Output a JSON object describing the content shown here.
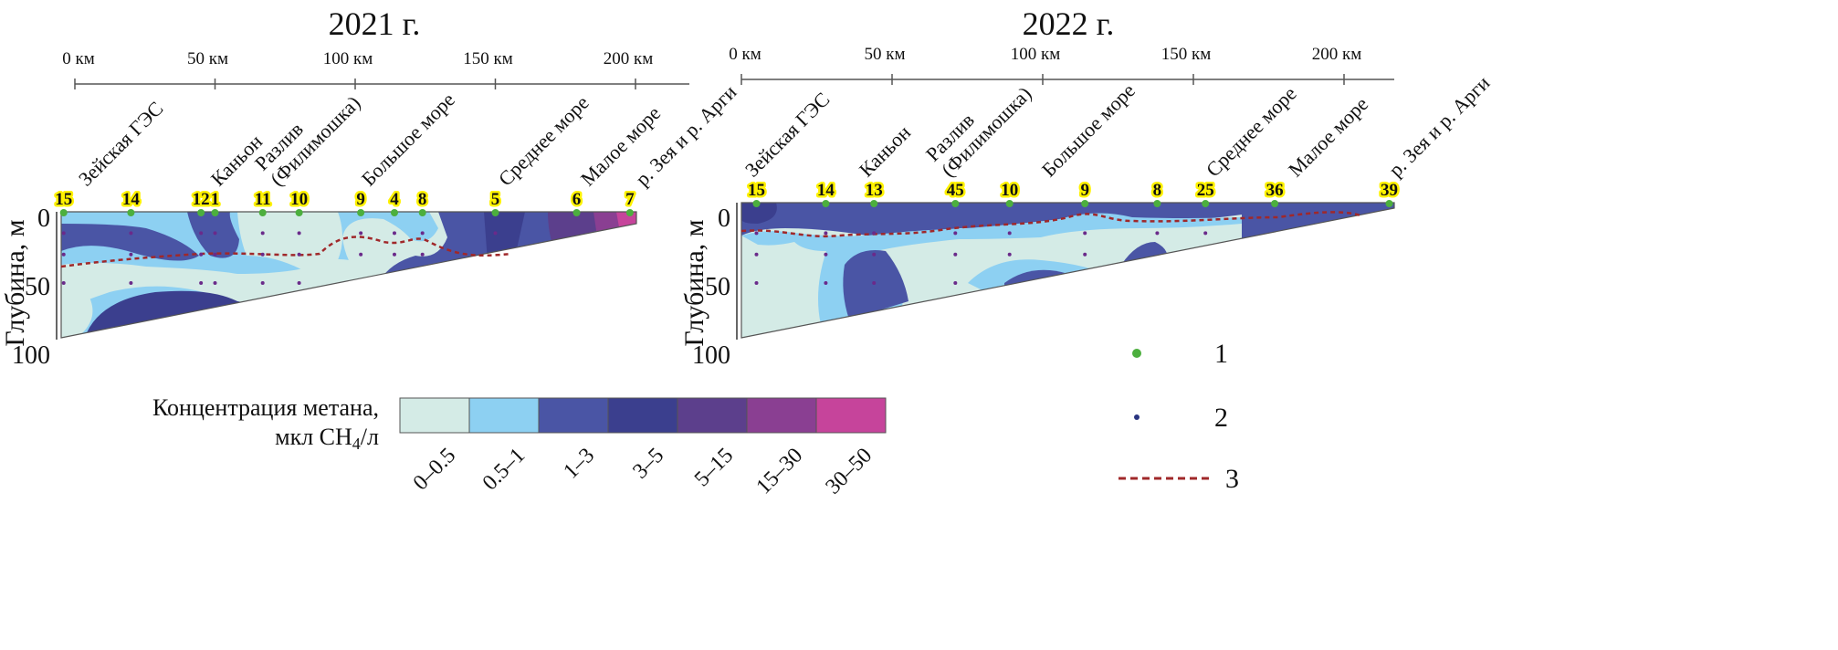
{
  "chart_data": [
    {
      "type": "heatmap",
      "title": "2021 г.",
      "ylabel": "Глубина, м",
      "yticks": [
        "0",
        "50",
        "100"
      ],
      "ylim": [
        0,
        100
      ],
      "xticks": [
        "0 км",
        "50 км",
        "100 км",
        "150 км",
        "200 км"
      ],
      "xlim_km": [
        0,
        220
      ],
      "locations": [
        "Зейская ГЭС",
        "Каньон",
        "Разлив\n(Филимошка)",
        "Большое море",
        "Среднее море",
        "Малое море",
        "р. Зея и р. Арги"
      ],
      "stations": [
        {
          "id": "15",
          "km": -4
        },
        {
          "id": "14",
          "km": 20
        },
        {
          "id": "12",
          "km": 45
        },
        {
          "id": "1",
          "km": 50
        },
        {
          "id": "11",
          "km": 67
        },
        {
          "id": "10",
          "km": 80
        },
        {
          "id": "9",
          "km": 102
        },
        {
          "id": "4",
          "km": 114
        },
        {
          "id": "8",
          "km": 124
        },
        {
          "id": "5",
          "km": 150
        },
        {
          "id": "6",
          "km": 179
        },
        {
          "id": "7",
          "km": 198
        }
      ]
    },
    {
      "type": "heatmap",
      "title": "2022 г.",
      "ylabel": "Глубина, м",
      "yticks": [
        "0",
        "50",
        "100"
      ],
      "ylim": [
        0,
        100
      ],
      "xticks": [
        "0 км",
        "50 км",
        "100 км",
        "150 км",
        "200 км"
      ],
      "xlim_km": [
        0,
        215
      ],
      "locations": [
        "Зейская ГЭС",
        "Каньон",
        "Разлив\n(Филимошка)",
        "Большое море",
        "Среднее море",
        "Малое море",
        "р. Зея и р. Арги"
      ],
      "stations": [
        {
          "id": "15",
          "km": 5
        },
        {
          "id": "14",
          "km": 28
        },
        {
          "id": "13",
          "km": 44
        },
        {
          "id": "45",
          "km": 71
        },
        {
          "id": "10",
          "km": 89
        },
        {
          "id": "9",
          "km": 114
        },
        {
          "id": "8",
          "km": 138
        },
        {
          "id": "25",
          "km": 154
        },
        {
          "id": "36",
          "km": 177
        },
        {
          "id": "39",
          "km": 215
        }
      ]
    }
  ],
  "legend": {
    "title_line1": "Концентрация метана,",
    "title_line2": "мкл CH",
    "title_sub": "4",
    "title_unit": "/л",
    "bins": [
      {
        "label": "0–0.5",
        "color": "#d4ebe6"
      },
      {
        "label": "0.5–1",
        "color": "#8dd0f2"
      },
      {
        "label": "1–3",
        "color": "#4a55a5"
      },
      {
        "label": "3–5",
        "color": "#3b3f8e"
      },
      {
        "label": "5–15",
        "color": "#5c3f8c"
      },
      {
        "label": "15–30",
        "color": "#8a3f92"
      },
      {
        "label": "30–50",
        "color": "#c6449b"
      }
    ],
    "symbols": [
      {
        "label": "1",
        "icon": "green-dot-surface-station",
        "color": "#4caf3e"
      },
      {
        "label": "2",
        "icon": "dark-dot-sampling-point",
        "color": "#2a3580"
      },
      {
        "label": "3",
        "icon": "red-dashed-line",
        "color": "#a0282a"
      }
    ]
  }
}
